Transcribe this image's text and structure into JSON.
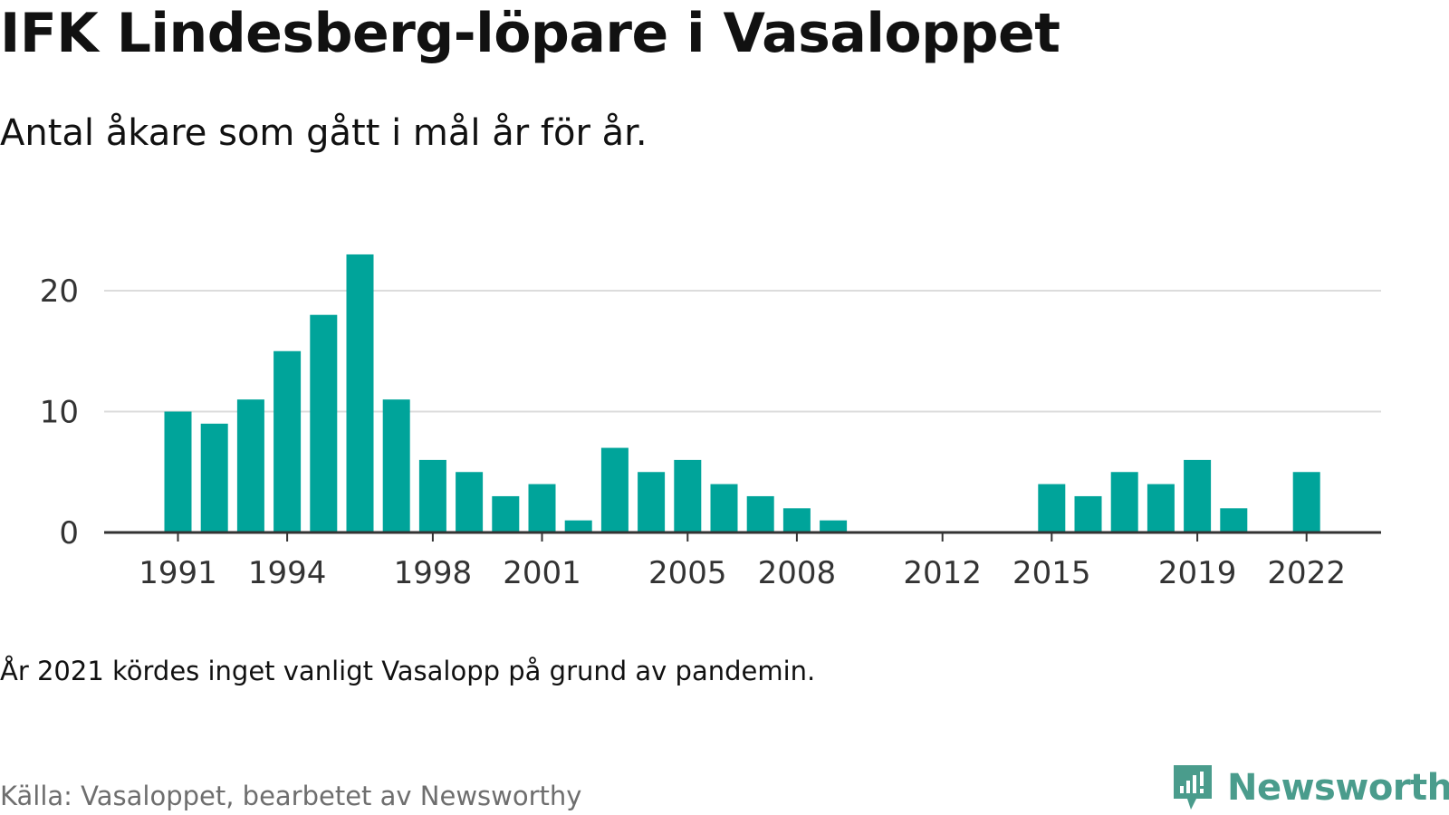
{
  "title": "IFK Lindesberg-löpare i Vasaloppet",
  "subtitle": "Antal åkare som gått i mål år för år.",
  "note": "År 2021 kördes inget vanligt Vasalopp på grund av pandemin.",
  "source": "Källa: Vasaloppet, bearbetet av Newsworthy",
  "logo": {
    "text": "Newsworthy",
    "icon": "newsworthy-logo-icon",
    "color": "#4a9c8c"
  },
  "colors": {
    "bar": "#00a49a",
    "grid": "#dcdcdc",
    "axis": "#333333",
    "tick_text": "#333333"
  },
  "chart_data": {
    "type": "bar",
    "categories": [
      "1991",
      "1992",
      "1993",
      "1994",
      "1995",
      "1996",
      "1997",
      "1998",
      "1999",
      "2000",
      "2001",
      "2002",
      "2003",
      "2004",
      "2005",
      "2006",
      "2007",
      "2008",
      "2009",
      "2010",
      "2011",
      "2012",
      "2013",
      "2014",
      "2015",
      "2016",
      "2017",
      "2018",
      "2019",
      "2020",
      "2021",
      "2022"
    ],
    "values": [
      10,
      9,
      11,
      15,
      18,
      23,
      11,
      6,
      5,
      3,
      4,
      1,
      7,
      5,
      6,
      4,
      3,
      2,
      1,
      0,
      0,
      0,
      0,
      0,
      4,
      3,
      5,
      4,
      6,
      2,
      null,
      5
    ],
    "x_tick_labels": [
      "1991",
      "1994",
      "1998",
      "2001",
      "2005",
      "2008",
      "2012",
      "2015",
      "2019",
      "2022"
    ],
    "y_ticks": [
      0,
      10,
      20
    ],
    "ylim": [
      0,
      23
    ],
    "grid": true,
    "xlabel": "",
    "ylabel": ""
  }
}
